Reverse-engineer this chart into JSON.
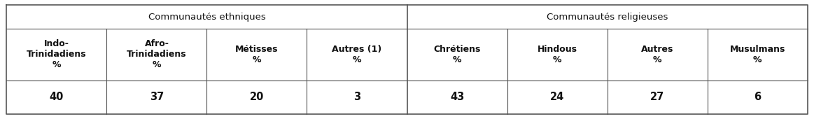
{
  "title_ethnic": "Communautés ethniques",
  "title_religious": "Communautés religieuses",
  "col_headers": [
    "Indo-\nTrinidadiens\n%",
    "Afro-\nTrinidadiens\n%",
    "Métisses\n%",
    "Autres (1)\n%",
    "Chrétiens\n%",
    "Hindous\n%",
    "Autres\n%",
    "Musulmans\n%"
  ],
  "values": [
    "40",
    "37",
    "20",
    "3",
    "43",
    "24",
    "27",
    "6"
  ],
  "n_ethnic": 4,
  "n_religious": 4,
  "bg_color": "#ffffff",
  "line_color": "#555555",
  "text_color": "#111111",
  "group_header_fontsize": 9.5,
  "cell_fontsize": 9.0,
  "value_fontsize": 10.5,
  "fig_width": 11.63,
  "fig_height": 1.7,
  "dpi": 100
}
